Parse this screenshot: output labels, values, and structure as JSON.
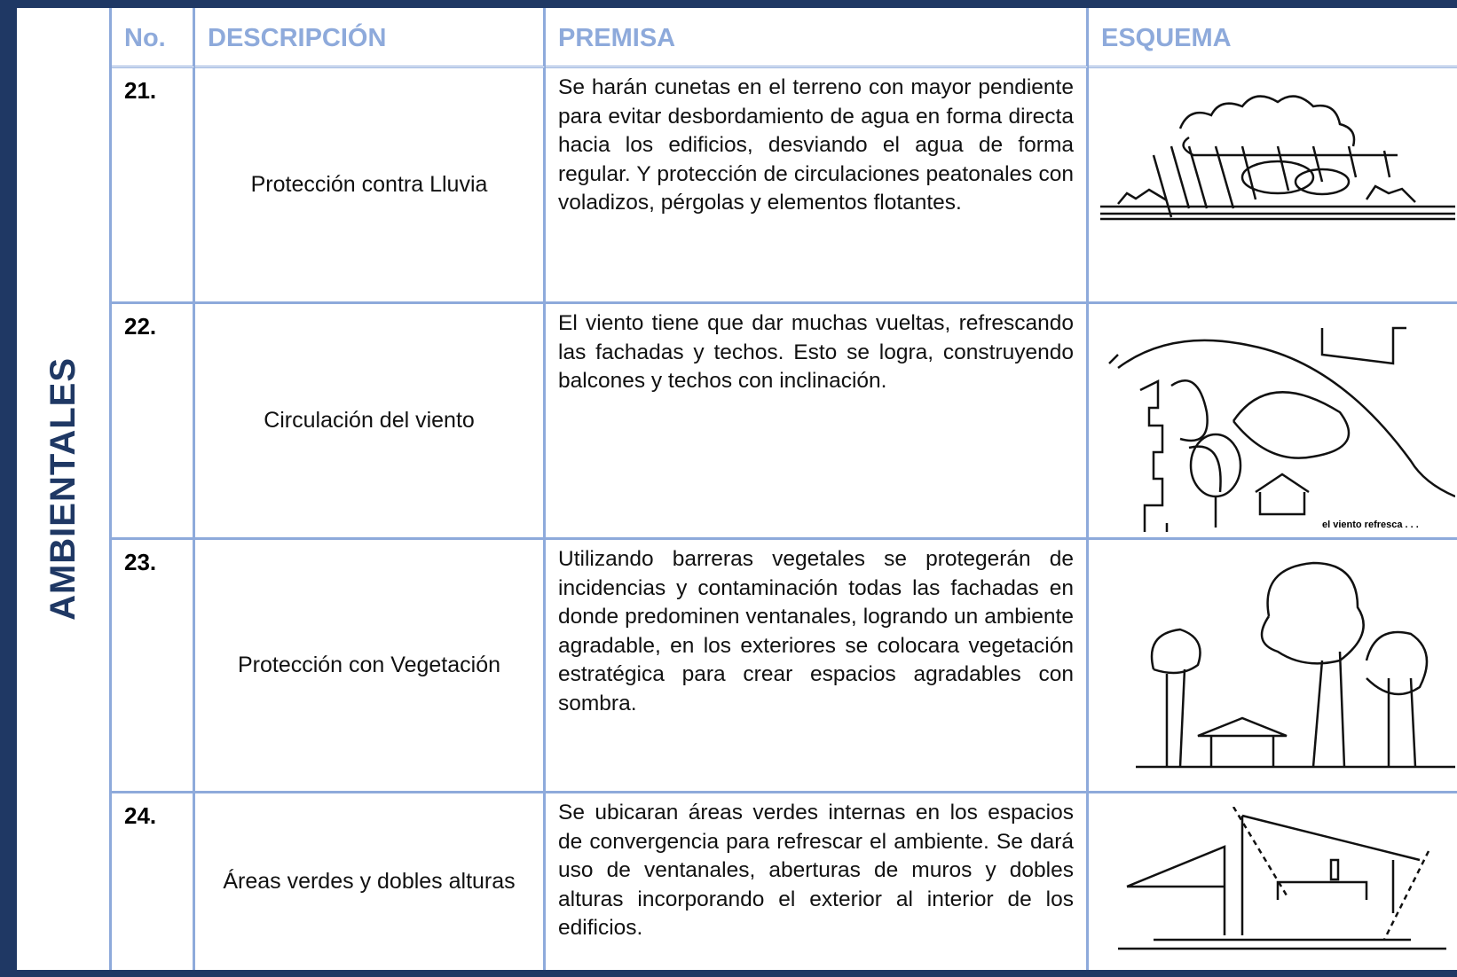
{
  "header": {
    "side_label": "AMBIENTALES"
  },
  "table": {
    "columns": [
      "No.",
      "DESCRIPCIÓN",
      "PREMISA",
      "ESQUEMA"
    ],
    "rows": [
      {
        "no": "21.",
        "description": "Protección contra Lluvia",
        "premise": "Se harán cunetas en el terreno con mayor pendiente para evitar desbordamiento de agua en forma directa hacia los edificios, desviando el agua de forma regular. Y protección de circulaciones peatonales con voladizos, pérgolas y elementos flotantes."
      },
      {
        "no": "22.",
        "description": "Circulación del viento",
        "premise": "El viento tiene que dar muchas vueltas, refrescando las fachadas y techos. Esto se logra, construyendo balcones y techos con inclinación.",
        "sketch_caption": "el viento refresca . . ."
      },
      {
        "no": "23.",
        "description": "Protección con Vegetación",
        "premise": "Utilizando barreras vegetales se protegerán de incidencias y contaminación todas las fachadas en donde predominen ventanales, logrando un ambiente agradable, en los exteriores se colocara vegetación estratégica para crear espacios agradables con sombra."
      },
      {
        "no": "24.",
        "description": "Áreas verdes y dobles alturas",
        "premise": "Se ubicaran áreas verdes internas en los espacios de convergencia para refrescar el ambiente. Se dará uso de ventanales, aberturas de muros y dobles alturas incorporando el exterior al interior de los edificios."
      }
    ]
  }
}
